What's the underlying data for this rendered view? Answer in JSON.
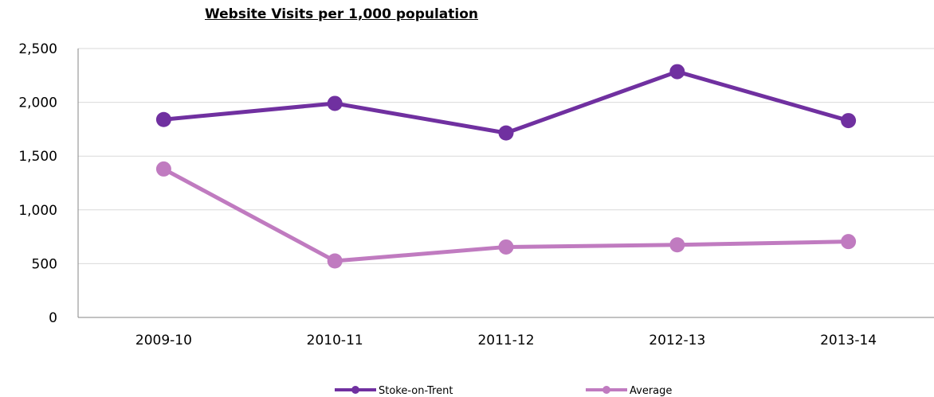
{
  "chart_data": {
    "type": "line",
    "title": "Website Visits per 1,000 population",
    "categories": [
      "2009-10",
      "2010-11",
      "2011-12",
      "2012-13",
      "2013-14"
    ],
    "ylim": [
      0,
      2500
    ],
    "yticks": [
      0,
      500,
      1000,
      1500,
      2000,
      2500
    ],
    "ytick_labels": [
      "0",
      "500",
      "1,000",
      "1,500",
      "2,000",
      "2,500"
    ],
    "grid": true,
    "legend_position": "bottom",
    "series": [
      {
        "name": "Stoke-on-Trent",
        "color": "#7030A0",
        "values": [
          1840,
          1990,
          1715,
          2285,
          1830
        ]
      },
      {
        "name": "Average",
        "color": "#C07BC0",
        "values": [
          1380,
          525,
          655,
          675,
          705
        ]
      }
    ]
  }
}
